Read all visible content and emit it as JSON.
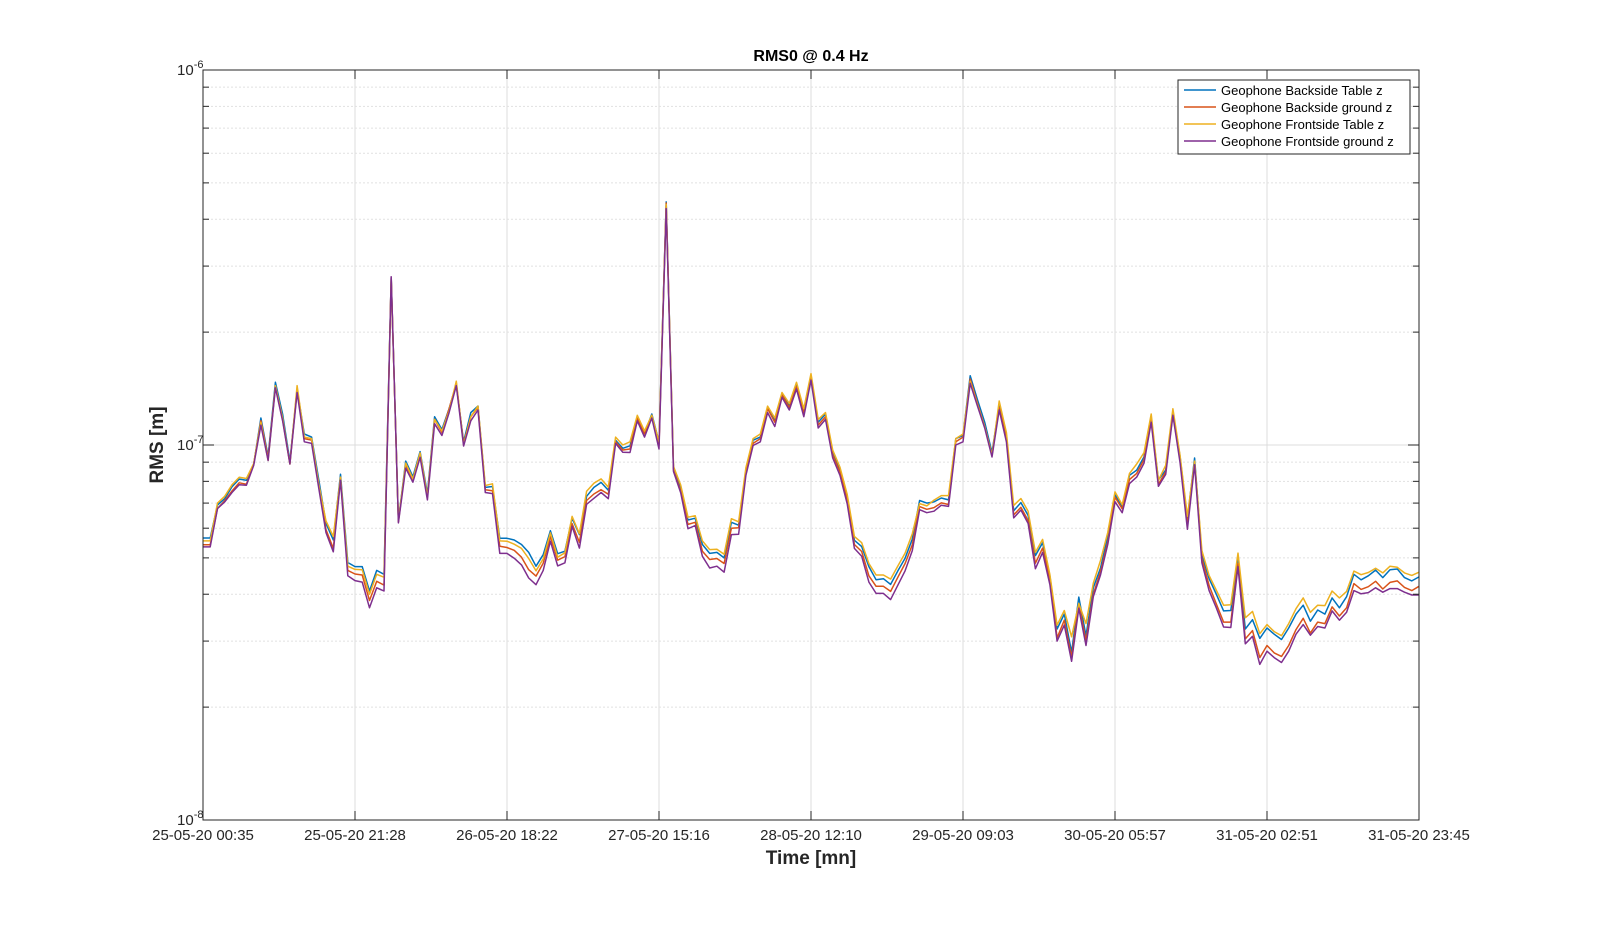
{
  "chart_data": {
    "type": "line",
    "title": "RMS0 @ 0.4 Hz",
    "xlabel": "Time [mn]",
    "ylabel": "RMS [m]",
    "yscale": "log",
    "ylim": [
      1e-08,
      1e-06
    ],
    "y_ticks": [
      {
        "value": 1e-08,
        "base": "10",
        "exp": "-8"
      },
      {
        "value": 1e-07,
        "base": "10",
        "exp": "-7"
      },
      {
        "value": 1e-06,
        "base": "10",
        "exp": "-6"
      }
    ],
    "x_ticks": [
      "25-05-20 00:35",
      "25-05-20 21:28",
      "26-05-20 18:22",
      "27-05-20 15:16",
      "28-05-20 12:10",
      "29-05-20 09:03",
      "30-05-20 05:57",
      "31-05-20 02:51",
      "31-05-20 23:45"
    ],
    "grid": true,
    "legend_position": "top-right",
    "series": [
      {
        "name": "Geophone Backside Table z",
        "color": "#0072BD",
        "values": [
          5.65e-08,
          5.65e-08,
          6.92e-08,
          7.19e-08,
          7.74e-08,
          8.11e-08,
          8.05e-08,
          8.87e-08,
          1.18e-07,
          9.33e-08,
          1.47e-07,
          1.21e-07,
          9.04e-08,
          1.41e-07,
          1.07e-07,
          1.05e-07,
          8.07e-08,
          6.18e-08,
          5.58e-08,
          8.36e-08,
          4.86e-08,
          4.74e-08,
          4.74e-08,
          4.08e-08,
          4.63e-08,
          4.52e-08,
          2.79e-07,
          6.29e-08,
          9.06e-08,
          8.23e-08,
          9.6e-08,
          7.42e-08,
          1.19e-07,
          1.1e-07,
          1.25e-07,
          1.45e-07,
          1.02e-07,
          1.22e-07,
          1.27e-07,
          7.71e-08,
          7.75e-08,
          5.64e-08,
          5.64e-08,
          5.58e-08,
          5.43e-08,
          5.17e-08,
          4.75e-08,
          5.1e-08,
          5.91e-08,
          5.13e-08,
          5.21e-08,
          6.38e-08,
          5.77e-08,
          7.3e-08,
          7.71e-08,
          7.95e-08,
          7.57e-08,
          1.03e-07,
          9.8e-08,
          9.95e-08,
          1.19e-07,
          1.07e-07,
          1.21e-07,
          1.02e-07,
          4.45e-07,
          8.66e-08,
          7.71e-08,
          6.31e-08,
          6.38e-08,
          5.43e-08,
          5.14e-08,
          5.17e-08,
          5e-08,
          6.22e-08,
          6.11e-08,
          8.5e-08,
          1.03e-07,
          1.05e-07,
          1.26e-07,
          1.17e-07,
          1.37e-07,
          1.27e-07,
          1.45e-07,
          1.23e-07,
          1.53e-07,
          1.15e-07,
          1.21e-07,
          9.5e-08,
          8.57e-08,
          7.23e-08,
          5.57e-08,
          5.36e-08,
          4.74e-08,
          4.37e-08,
          4.4e-08,
          4.25e-08,
          4.62e-08,
          4.99e-08,
          5.61e-08,
          7.11e-08,
          7e-08,
          7.05e-08,
          7.22e-08,
          7.14e-08,
          1.04e-07,
          1.06e-07,
          1.53e-07,
          1.32e-07,
          1.15e-07,
          9.55e-08,
          1.28e-07,
          1.06e-07,
          6.68e-08,
          7.02e-08,
          6.49e-08,
          5.07e-08,
          5.49e-08,
          4.47e-08,
          3.23e-08,
          3.54e-08,
          2.8e-08,
          3.93e-08,
          3.1e-08,
          4.16e-08,
          4.7e-08,
          5.71e-08,
          7.37e-08,
          6.85e-08,
          8.3e-08,
          8.57e-08,
          9.3e-08,
          1.18e-07,
          8.07e-08,
          8.57e-08,
          1.23e-07,
          9.3e-08,
          6.34e-08,
          9.23e-08,
          5.08e-08,
          4.4e-08,
          4e-08,
          3.61e-08,
          3.62e-08,
          4.99e-08,
          3.23e-08,
          3.42e-08,
          3.05e-08,
          3.25e-08,
          3.13e-08,
          3.03e-08,
          3.25e-08,
          3.54e-08,
          3.74e-08,
          3.39e-08,
          3.63e-08,
          3.54e-08,
          3.91e-08,
          3.68e-08,
          3.94e-08,
          4.52e-08,
          4.37e-08,
          4.48e-08,
          4.64e-08,
          4.43e-08,
          4.65e-08,
          4.67e-08,
          4.43e-08,
          4.34e-08,
          4.45e-08
        ]
      },
      {
        "name": "Geophone Backside ground z",
        "color": "#D95319",
        "values": [
          5.42e-08,
          5.42e-08,
          6.77e-08,
          7.1e-08,
          7.54e-08,
          7.93e-08,
          7.86e-08,
          8.88e-08,
          1.16e-07,
          9.22e-08,
          1.43e-07,
          1.17e-07,
          8.92e-08,
          1.4e-07,
          1.04e-07,
          1.03e-07,
          7.8e-08,
          5.95e-08,
          5.3e-08,
          8.16e-08,
          4.63e-08,
          4.53e-08,
          4.5e-08,
          3.85e-08,
          4.33e-08,
          4.23e-08,
          2.8e-07,
          6.24e-08,
          8.85e-08,
          8.08e-08,
          9.45e-08,
          7.26e-08,
          1.17e-07,
          1.08e-07,
          1.25e-07,
          1.46e-07,
          1.01e-07,
          1.19e-07,
          1.26e-07,
          7.6e-08,
          7.55e-08,
          5.37e-08,
          5.33e-08,
          5.24e-08,
          5.02e-08,
          4.65e-08,
          4.47e-08,
          4.84e-08,
          5.7e-08,
          4.93e-08,
          5.04e-08,
          6.17e-08,
          5.5e-08,
          7.11e-08,
          7.4e-08,
          7.6e-08,
          7.39e-08,
          1.02e-07,
          9.7e-08,
          9.76e-08,
          1.18e-07,
          1.07e-07,
          1.2e-07,
          9.98e-08,
          4.42e-07,
          8.57e-08,
          7.54e-08,
          6.14e-08,
          6.22e-08,
          5.21e-08,
          4.95e-08,
          4.98e-08,
          4.83e-08,
          6e-08,
          6.02e-08,
          8.48e-08,
          1.01e-07,
          1.04e-07,
          1.25e-07,
          1.15e-07,
          1.36e-07,
          1.26e-07,
          1.43e-07,
          1.22e-07,
          1.51e-07,
          1.13e-07,
          1.19e-07,
          9.42e-08,
          8.48e-08,
          7.13e-08,
          5.43e-08,
          5.2e-08,
          4.48e-08,
          4.2e-08,
          4.2e-08,
          4.07e-08,
          4.44e-08,
          4.83e-08,
          5.42e-08,
          6.85e-08,
          6.74e-08,
          6.81e-08,
          7.01e-08,
          6.94e-08,
          1.02e-07,
          1.05e-07,
          1.5e-07,
          1.29e-07,
          1.12e-07,
          9.4e-08,
          1.26e-07,
          1.04e-07,
          6.51e-08,
          6.82e-08,
          6.29e-08,
          4.84e-08,
          5.31e-08,
          4.38e-08,
          3.06e-08,
          3.41e-08,
          2.72e-08,
          3.77e-08,
          3.01e-08,
          4e-08,
          4.6e-08,
          5.51e-08,
          7.26e-08,
          6.76e-08,
          8.09e-08,
          8.4e-08,
          9.14e-08,
          1.17e-07,
          7.85e-08,
          8.49e-08,
          1.21e-07,
          9.13e-08,
          6.12e-08,
          9.01e-08,
          4.98e-08,
          4.22e-08,
          3.77e-08,
          3.37e-08,
          3.37e-08,
          4.83e-08,
          3.04e-08,
          3.2e-08,
          2.71e-08,
          2.92e-08,
          2.79e-08,
          2.73e-08,
          2.92e-08,
          3.22e-08,
          3.45e-08,
          3.15e-08,
          3.37e-08,
          3.34e-08,
          3.7e-08,
          3.5e-08,
          3.68e-08,
          4.27e-08,
          4.12e-08,
          4.19e-08,
          4.33e-08,
          4.13e-08,
          4.3e-08,
          4.34e-08,
          4.17e-08,
          4.09e-08,
          4.2e-08
        ]
      },
      {
        "name": "Geophone Frontside Table z",
        "color": "#EDB120",
        "values": [
          5.55e-08,
          5.55e-08,
          7e-08,
          7.3e-08,
          7.83e-08,
          8.2e-08,
          8.14e-08,
          8.93e-08,
          1.15e-07,
          9.1e-08,
          1.44e-07,
          1.18e-07,
          8.9e-08,
          1.44e-07,
          1.05e-07,
          1.04e-07,
          7.85e-08,
          6.27e-08,
          5.7e-08,
          8.21e-08,
          4.75e-08,
          4.66e-08,
          4.65e-08,
          4e-08,
          4.52e-08,
          4.44e-08,
          2.76e-07,
          6.27e-08,
          8.95e-08,
          8.12e-08,
          9.53e-08,
          7.27e-08,
          1.17e-07,
          1.09e-07,
          1.23e-07,
          1.48e-07,
          1e-07,
          1.19e-07,
          1.27e-07,
          7.8e-08,
          7.88e-08,
          5.55e-08,
          5.54e-08,
          5.44e-08,
          5.3e-08,
          4.98e-08,
          4.62e-08,
          4.97e-08,
          5.83e-08,
          5.02e-08,
          5.16e-08,
          6.45e-08,
          5.8e-08,
          7.53e-08,
          7.91e-08,
          8.12e-08,
          7.72e-08,
          1.05e-07,
          1e-07,
          1.02e-07,
          1.2e-07,
          1.09e-07,
          1.2e-07,
          1.02e-07,
          4.38e-07,
          8.77e-08,
          7.82e-08,
          6.42e-08,
          6.48e-08,
          5.55e-08,
          5.26e-08,
          5.27e-08,
          5.11e-08,
          6.36e-08,
          6.24e-08,
          8.7e-08,
          1.04e-07,
          1.07e-07,
          1.27e-07,
          1.18e-07,
          1.38e-07,
          1.29e-07,
          1.47e-07,
          1.25e-07,
          1.55e-07,
          1.17e-07,
          1.22e-07,
          9.7e-08,
          8.72e-08,
          7.38e-08,
          5.7e-08,
          5.49e-08,
          4.83e-08,
          4.5e-08,
          4.5e-08,
          4.39e-08,
          4.76e-08,
          5.15e-08,
          5.8e-08,
          6.98e-08,
          6.88e-08,
          7.13e-08,
          7.33e-08,
          7.33e-08,
          1.04e-07,
          1.07e-07,
          1.48e-07,
          1.28e-07,
          1.12e-07,
          9.39e-08,
          1.31e-07,
          1.08e-07,
          6.9e-08,
          7.2e-08,
          6.66e-08,
          5.17e-08,
          5.6e-08,
          4.51e-08,
          3.31e-08,
          3.62e-08,
          3.08e-08,
          3.78e-08,
          3.34e-08,
          4.28e-08,
          4.92e-08,
          5.85e-08,
          7.5e-08,
          6.93e-08,
          8.4e-08,
          8.9e-08,
          9.54e-08,
          1.21e-07,
          8.05e-08,
          8.83e-08,
          1.25e-07,
          9.36e-08,
          6.46e-08,
          9.06e-08,
          5.23e-08,
          4.49e-08,
          4.1e-08,
          3.74e-08,
          3.75e-08,
          5.15e-08,
          3.46e-08,
          3.6e-08,
          3.14e-08,
          3.32e-08,
          3.18e-08,
          3.1e-08,
          3.34e-08,
          3.66e-08,
          3.91e-08,
          3.58e-08,
          3.74e-08,
          3.73e-08,
          4.08e-08,
          3.91e-08,
          4.07e-08,
          4.61e-08,
          4.51e-08,
          4.57e-08,
          4.69e-08,
          4.56e-08,
          4.75e-08,
          4.72e-08,
          4.56e-08,
          4.49e-08,
          4.58e-08
        ]
      },
      {
        "name": "Geophone Frontside ground z",
        "color": "#7E2F8E",
        "values": [
          5.35e-08,
          5.35e-08,
          6.77e-08,
          7.05e-08,
          7.47e-08,
          7.83e-08,
          7.81e-08,
          8.82e-08,
          1.13e-07,
          9.09e-08,
          1.42e-07,
          1.16e-07,
          8.9e-08,
          1.38e-07,
          1.02e-07,
          1.01e-07,
          7.66e-08,
          5.84e-08,
          5.19e-08,
          8.05e-08,
          4.48e-08,
          4.35e-08,
          4.31e-08,
          3.68e-08,
          4.16e-08,
          4.08e-08,
          2.81e-07,
          6.2e-08,
          8.67e-08,
          7.96e-08,
          9.27e-08,
          7.14e-08,
          1.14e-07,
          1.06e-07,
          1.22e-07,
          1.44e-07,
          9.94e-08,
          1.16e-07,
          1.24e-07,
          7.47e-08,
          7.42e-08,
          5.14e-08,
          5.14e-08,
          4.99e-08,
          4.79e-08,
          4.42e-08,
          4.24e-08,
          4.63e-08,
          5.54e-08,
          4.76e-08,
          4.85e-08,
          6.07e-08,
          5.31e-08,
          6.95e-08,
          7.21e-08,
          7.47e-08,
          7.19e-08,
          1.01e-07,
          9.56e-08,
          9.55e-08,
          1.16e-07,
          1.05e-07,
          1.18e-07,
          9.76e-08,
          4.27e-07,
          8.5e-08,
          7.46e-08,
          5.98e-08,
          6.1e-08,
          5.05e-08,
          4.7e-08,
          4.75e-08,
          4.58e-08,
          5.77e-08,
          5.78e-08,
          8.3e-08,
          9.97e-08,
          1.02e-07,
          1.22e-07,
          1.12e-07,
          1.34e-07,
          1.24e-07,
          1.41e-07,
          1.19e-07,
          1.49e-07,
          1.11e-07,
          1.17e-07,
          9.24e-08,
          8.29e-08,
          6.97e-08,
          5.3e-08,
          5.05e-08,
          4.31e-08,
          4.02e-08,
          4.02e-08,
          3.87e-08,
          4.23e-08,
          4.62e-08,
          5.23e-08,
          6.72e-08,
          6.6e-08,
          6.66e-08,
          6.91e-08,
          6.86e-08,
          1e-07,
          1.02e-07,
          1.46e-07,
          1.27e-07,
          1.11e-07,
          9.29e-08,
          1.24e-07,
          1.02e-07,
          6.39e-08,
          6.71e-08,
          6.18e-08,
          4.68e-08,
          5.17e-08,
          4.24e-08,
          3e-08,
          3.31e-08,
          2.65e-08,
          3.67e-08,
          2.92e-08,
          3.94e-08,
          4.5e-08,
          5.44e-08,
          7.06e-08,
          6.6e-08,
          7.89e-08,
          8.21e-08,
          8.94e-08,
          1.15e-07,
          7.76e-08,
          8.35e-08,
          1.2e-07,
          8.96e-08,
          5.96e-08,
          8.86e-08,
          4.85e-08,
          4.09e-08,
          3.68e-08,
          3.27e-08,
          3.26e-08,
          4.74e-08,
          2.95e-08,
          3.09e-08,
          2.6e-08,
          2.82e-08,
          2.71e-08,
          2.63e-08,
          2.82e-08,
          3.13e-08,
          3.32e-08,
          3.11e-08,
          3.28e-08,
          3.25e-08,
          3.61e-08,
          3.41e-08,
          3.58e-08,
          4.09e-08,
          4.01e-08,
          4.04e-08,
          4.16e-08,
          4.05e-08,
          4.14e-08,
          4.14e-08,
          4.05e-08,
          3.98e-08,
          3.98e-08
        ]
      }
    ]
  }
}
